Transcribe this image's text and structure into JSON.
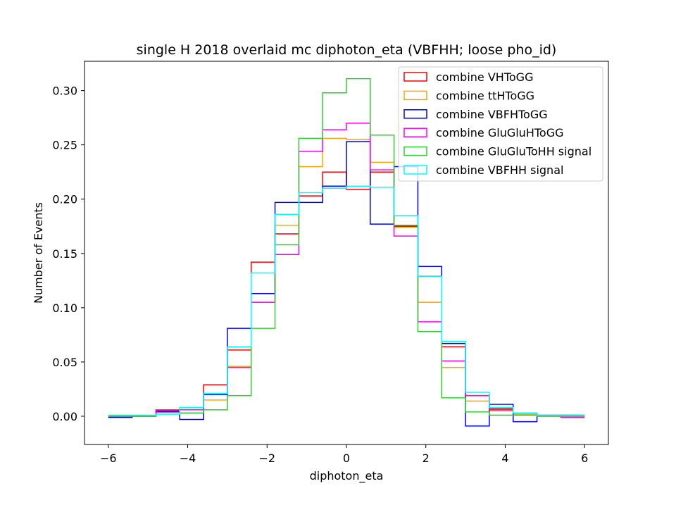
{
  "chart_data": {
    "type": "histogram-step",
    "title": "single H 2018 overlaid mc diphoton_eta (VBFHH; loose pho_id)",
    "xlabel": "diphoton_eta",
    "ylabel": "Number of Events",
    "xlim": [
      -6.6,
      6.6
    ],
    "ylim": [
      -0.026,
      0.327
    ],
    "xticks": [
      -6,
      -4,
      -2,
      0,
      2,
      4,
      6
    ],
    "xtick_labels": [
      "−6",
      "−4",
      "−2",
      "0",
      "2",
      "4",
      "6"
    ],
    "yticks": [
      0.0,
      0.05,
      0.1,
      0.15,
      0.2,
      0.25,
      0.3
    ],
    "ytick_labels": [
      "0.00",
      "0.05",
      "0.10",
      "0.15",
      "0.20",
      "0.25",
      "0.30"
    ],
    "grid": false,
    "legend_position": "top-right",
    "bin_edges": [
      -6.0,
      -5.4,
      -4.8,
      -4.2,
      -3.6,
      -3.0,
      -2.4,
      -1.8,
      -1.2,
      -0.6,
      0.0,
      0.6,
      1.2,
      1.8,
      2.4,
      3.0,
      3.6,
      4.2,
      4.8,
      5.4,
      6.0
    ],
    "series": [
      {
        "name": "combine VHToGG",
        "color": "#ff0000",
        "values": [
          0.0,
          0.0,
          0.005,
          0.006,
          0.029,
          0.061,
          0.142,
          0.168,
          0.203,
          0.225,
          0.209,
          0.225,
          0.175,
          0.129,
          0.064,
          0.019,
          0.007,
          0.003,
          0.001,
          0.0
        ]
      },
      {
        "name": "combine ttHToGG",
        "color": "#ffa500",
        "values": [
          0.0,
          0.0,
          0.004,
          0.006,
          0.015,
          0.046,
          0.105,
          0.176,
          0.23,
          0.256,
          0.255,
          0.234,
          0.174,
          0.105,
          0.045,
          0.014,
          0.005,
          0.002,
          0.001,
          0.0
        ]
      },
      {
        "name": "combine VBFHToGG",
        "color": "#0000ff",
        "values": [
          -0.001,
          0.0,
          0.004,
          -0.003,
          0.02,
          0.081,
          0.113,
          0.197,
          0.197,
          0.212,
          0.253,
          0.177,
          0.23,
          0.138,
          0.067,
          -0.009,
          0.011,
          -0.005,
          0.0,
          0.001
        ]
      },
      {
        "name": "combine GluGluHToGG",
        "color": "#ff00ff",
        "values": [
          0.0,
          0.0,
          0.006,
          0.006,
          0.021,
          0.045,
          0.105,
          0.149,
          0.244,
          0.264,
          0.27,
          0.227,
          0.166,
          0.087,
          0.051,
          0.019,
          0.006,
          0.003,
          0.001,
          -0.001
        ]
      },
      {
        "name": "combine GluGluToHH signal",
        "color": "#32cd32",
        "values": [
          0.0,
          0.0,
          0.002,
          0.003,
          0.006,
          0.019,
          0.081,
          0.158,
          0.256,
          0.298,
          0.311,
          0.259,
          0.176,
          0.078,
          0.017,
          0.004,
          0.001,
          0.001,
          0.0,
          0.0
        ]
      },
      {
        "name": "combine VBFHH signal",
        "color": "#00ffff",
        "values": [
          0.001,
          0.001,
          0.002,
          0.008,
          0.021,
          0.064,
          0.132,
          0.186,
          0.206,
          0.21,
          0.212,
          0.211,
          0.185,
          0.129,
          0.069,
          0.022,
          0.008,
          0.003,
          0.001,
          0.001
        ]
      }
    ]
  }
}
